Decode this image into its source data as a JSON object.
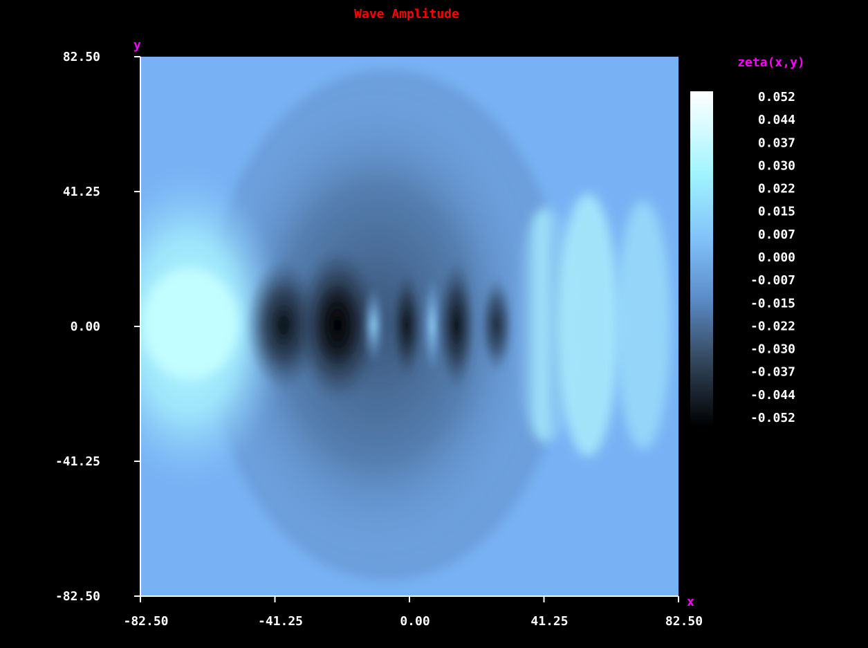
{
  "chart_data": {
    "type": "heatmap",
    "title": "Wave Amplitude",
    "xlabel": "x",
    "ylabel": "y",
    "colorbar_label": "zeta(x,y)",
    "xlim": [
      -82.5,
      82.5
    ],
    "ylim": [
      -82.5,
      82.5
    ],
    "x_ticks": [
      "-82.50",
      "-41.25",
      "0.00",
      "41.25",
      "82.50"
    ],
    "y_ticks": [
      "82.50",
      "41.25",
      "0.00",
      "-41.25",
      "-82.50"
    ],
    "colorbar_range": [
      -0.052,
      0.052
    ],
    "colorbar_ticks": [
      "0.052",
      "0.044",
      "0.037",
      "0.030",
      "0.022",
      "0.015",
      "0.007",
      "0.000",
      "-0.007",
      "-0.015",
      "-0.022",
      "-0.030",
      "-0.037",
      "-0.044",
      "-0.052"
    ],
    "colormap": [
      "#000000",
      "#2e3e50",
      "#4a6f98",
      "#6fa6e6",
      "#8ed8f8",
      "#ffffff"
    ],
    "grid": false,
    "legend_position": "right"
  },
  "colors": {
    "background": "#000000",
    "title": "#ff0000",
    "axis_label": "#ff00ff",
    "tick_text": "#ffffff"
  }
}
